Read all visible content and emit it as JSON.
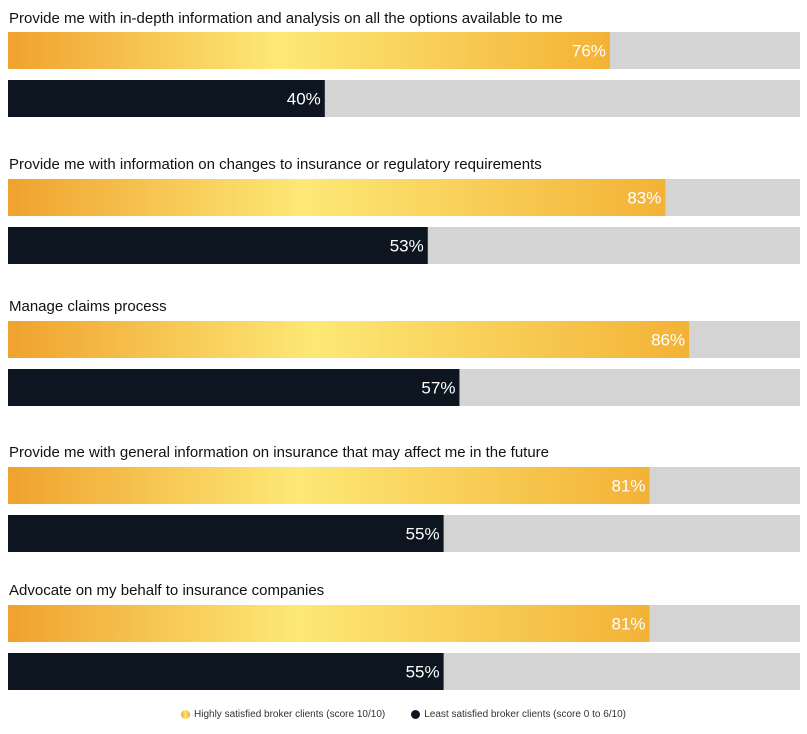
{
  "chart_data": {
    "type": "bar",
    "orientation": "horizontal",
    "categories": [
      "Provide me with in-depth information and analysis on all the options available to me",
      "Provide me with information on changes to insurance or regulatory requirements",
      "Manage claims process",
      "Provide me with general information on insurance that may affect me in the future",
      "Advocate on my behalf to insurance companies"
    ],
    "series": [
      {
        "name": "Highly satisfied broker clients (score 10/10)",
        "values": [
          76,
          83,
          86,
          81,
          81
        ]
      },
      {
        "name": "Least satisfied broker clients (score 0 to 6/10)",
        "values": [
          40,
          53,
          57,
          55,
          55
        ]
      }
    ],
    "value_suffix": "%",
    "xlim": [
      0,
      100
    ],
    "grid": false,
    "legend_position": "bottom-center",
    "colors": {
      "highly_satisfied": [
        "#f0a22e",
        "#fde876",
        "#f3b236"
      ],
      "least_satisfied": "#0c1520",
      "track": "#d4d4d4"
    }
  }
}
